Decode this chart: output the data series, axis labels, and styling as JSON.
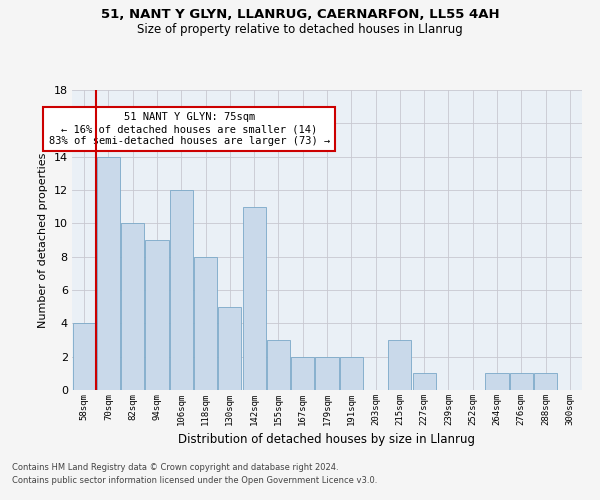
{
  "title1": "51, NANT Y GLYN, LLANRUG, CAERNARFON, LL55 4AH",
  "title2": "Size of property relative to detached houses in Llanrug",
  "xlabel": "Distribution of detached houses by size in Llanrug",
  "ylabel": "Number of detached properties",
  "categories": [
    "58sqm",
    "70sqm",
    "82sqm",
    "94sqm",
    "106sqm",
    "118sqm",
    "130sqm",
    "142sqm",
    "155sqm",
    "167sqm",
    "179sqm",
    "191sqm",
    "203sqm",
    "215sqm",
    "227sqm",
    "239sqm",
    "252sqm",
    "264sqm",
    "276sqm",
    "288sqm",
    "300sqm"
  ],
  "values": [
    4,
    14,
    10,
    9,
    12,
    8,
    5,
    11,
    3,
    2,
    2,
    2,
    0,
    3,
    1,
    0,
    0,
    1,
    1,
    1,
    0
  ],
  "bar_color": "#c9d9ea",
  "bar_edge_color": "#7aa8c8",
  "vline_x": 0.5,
  "vline_color": "#cc0000",
  "annotation_text": "51 NANT Y GLYN: 75sqm\n← 16% of detached houses are smaller (14)\n83% of semi-detached houses are larger (73) →",
  "annotation_box_color": "#ffffff",
  "annotation_box_edge": "#cc0000",
  "ylim": [
    0,
    18
  ],
  "yticks": [
    0,
    2,
    4,
    6,
    8,
    10,
    12,
    14,
    16,
    18
  ],
  "footer1": "Contains HM Land Registry data © Crown copyright and database right 2024.",
  "footer2": "Contains public sector information licensed under the Open Government Licence v3.0.",
  "bg_color": "#eaf0f6",
  "fig_bg_color": "#f5f5f5",
  "grid_color": "#c8c8d0"
}
